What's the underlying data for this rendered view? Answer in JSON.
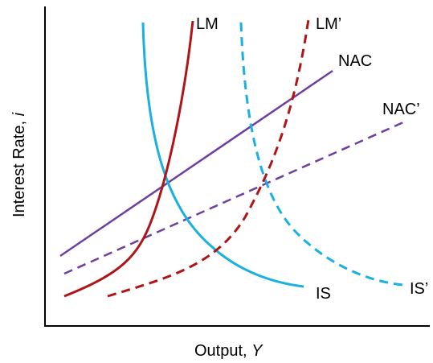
{
  "axes": {
    "x_label": "Output, ",
    "x_var": "Y",
    "y_label": "Interest Rate, ",
    "y_var": "i"
  },
  "curves": {
    "lm": "LM",
    "lm_prime": "LM’",
    "is": "IS",
    "is_prime": "IS’",
    "nac": "NAC",
    "nac_prime": "NAC’"
  },
  "colors": {
    "lm": "#b01416",
    "is": "#1ab0e0",
    "nac": "#6d3fa0",
    "axis": "#000000"
  }
}
